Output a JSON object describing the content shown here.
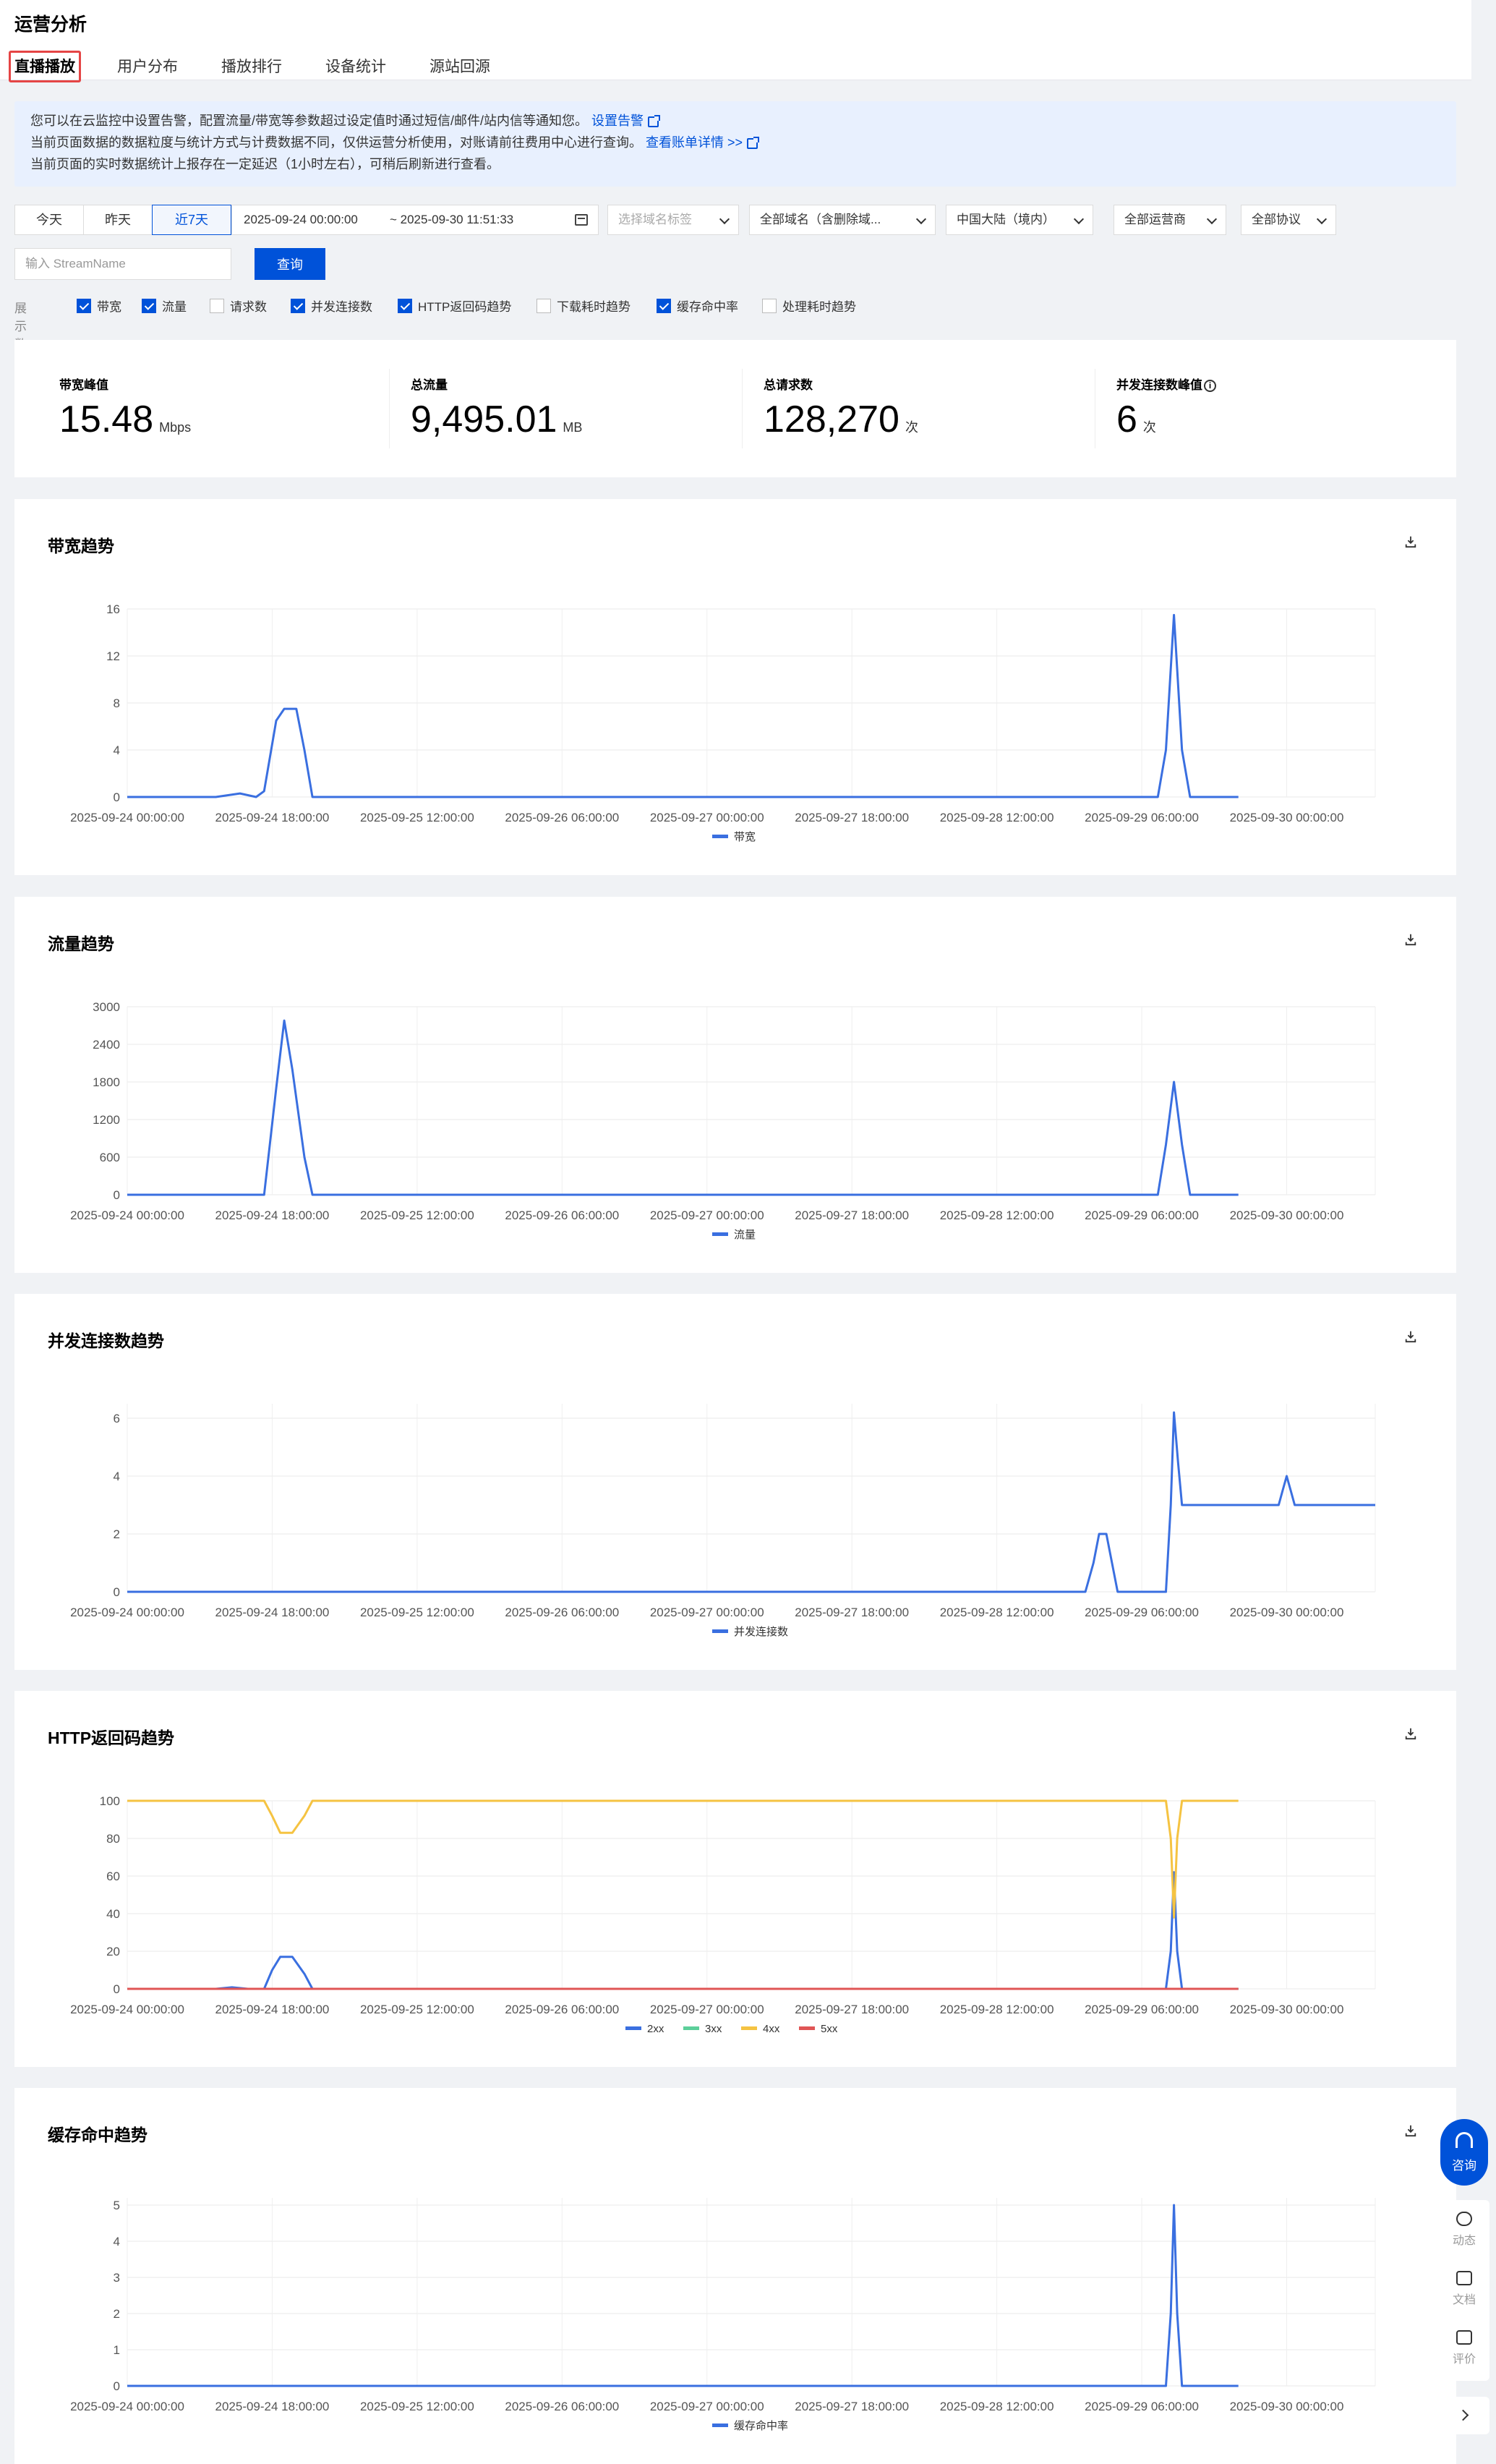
{
  "page": {
    "title": "运营分析",
    "tabs": [
      "直播播放",
      "用户分布",
      "播放排行",
      "设备统计",
      "源站回源"
    ],
    "active_tab": 0
  },
  "notice": {
    "line1": "您可以在云监控中设置告警，配置流量/带宽等参数超过设定值时通过短信/邮件/站内信等通知您。",
    "link1": "设置告警",
    "line2": "当前页面数据的数据粒度与统计方式与计费数据不同，仅供运营分析使用，对账请前往费用中心进行查询。",
    "link2": "查看账单详情 >>",
    "line3": "当前页面的实时数据统计上报存在一定延迟（1小时左右），可稍后刷新进行查看。"
  },
  "filters": {
    "ranges": [
      "今天",
      "昨天",
      "近7天"
    ],
    "active_range": 2,
    "date_start": "2025-09-24 00:00:00",
    "date_end": "~ 2025-09-30 11:51:33",
    "domain_tag_placeholder": "选择域名标签",
    "domain": "全部域名（含删除域...",
    "region": "中国大陆（境内）",
    "isp": "全部运营商",
    "protocol": "全部协议",
    "stream_placeholder": "输入 StreamName",
    "query_button": "查询"
  },
  "display_options": {
    "label": "展示数据",
    "items": [
      {
        "label": "带宽",
        "checked": true
      },
      {
        "label": "流量",
        "checked": true
      },
      {
        "label": "请求数",
        "checked": false
      },
      {
        "label": "并发连接数",
        "checked": true
      },
      {
        "label": "HTTP返回码趋势",
        "checked": true
      },
      {
        "label": "下载耗时趋势",
        "checked": false
      },
      {
        "label": "缓存命中率",
        "checked": true
      },
      {
        "label": "处理耗时趋势",
        "checked": false
      }
    ]
  },
  "summary": [
    {
      "label": "带宽峰值",
      "value": "15.48",
      "unit": "Mbps"
    },
    {
      "label": "总流量",
      "value": "9,495.01",
      "unit": "MB"
    },
    {
      "label": "总请求数",
      "value": "128,270",
      "unit": "次"
    },
    {
      "label": "并发连接数峰值",
      "value": "6",
      "unit": "次",
      "info_icon": "info-icon"
    }
  ],
  "icons": {
    "download": "download-icon",
    "consult": "headset-icon",
    "news": "cloud-icon",
    "docs": "book-icon",
    "review": "comment-icon",
    "expand": "chevron-right-icon"
  },
  "floating": {
    "consult": "咨询",
    "tools": [
      "动态",
      "文档",
      "评价"
    ]
  },
  "colors": {
    "primary": "#0052d9",
    "series_blue": "#3a6fe0",
    "series_green": "#5ccf9a",
    "series_yellow": "#f5c342",
    "series_red": "#e05555"
  },
  "chart_data": [
    {
      "type": "line",
      "title": "带宽趋势",
      "x": [
        "2025-09-24 00:00:00",
        "2025-09-24 18:00:00",
        "2025-09-25 12:00:00",
        "2025-09-26 06:00:00",
        "2025-09-27 00:00:00",
        "2025-09-27 18:00:00",
        "2025-09-28 12:00:00",
        "2025-09-29 06:00:00",
        "2025-09-30 00:00:00"
      ],
      "yticks": [
        0,
        4,
        8,
        12,
        16
      ],
      "ylim": [
        0,
        16
      ],
      "grid": true,
      "legend_position": "bottom",
      "series": [
        {
          "name": "带宽",
          "color": "#3a6fe0",
          "points": [
            [
              0,
              0
            ],
            [
              11,
              0
            ],
            [
              14,
              0.3
            ],
            [
              16,
              0
            ],
            [
              17,
              0.5
            ],
            [
              18.5,
              6.5
            ],
            [
              19.5,
              7.5
            ],
            [
              21,
              7.5
            ],
            [
              22,
              4
            ],
            [
              23,
              0
            ],
            [
              128,
              0
            ],
            [
              129,
              4
            ],
            [
              130,
              15.48
            ],
            [
              131,
              4
            ],
            [
              132,
              0
            ],
            [
              138,
              0
            ]
          ]
        }
      ]
    },
    {
      "type": "line",
      "title": "流量趋势",
      "x": [
        "2025-09-24 00:00:00",
        "2025-09-24 18:00:00",
        "2025-09-25 12:00:00",
        "2025-09-26 06:00:00",
        "2025-09-27 00:00:00",
        "2025-09-27 18:00:00",
        "2025-09-28 12:00:00",
        "2025-09-29 06:00:00",
        "2025-09-30 00:00:00"
      ],
      "yticks": [
        0,
        600,
        1200,
        1800,
        2400,
        3000
      ],
      "ylim": [
        0,
        3000
      ],
      "grid": true,
      "legend_position": "bottom",
      "series": [
        {
          "name": "流量",
          "color": "#3a6fe0",
          "points": [
            [
              0,
              0
            ],
            [
              17,
              0
            ],
            [
              18.5,
              1700
            ],
            [
              19.5,
              2780
            ],
            [
              20.5,
              2000
            ],
            [
              22,
              600
            ],
            [
              23,
              0
            ],
            [
              128,
              0
            ],
            [
              129,
              800
            ],
            [
              130,
              1800
            ],
            [
              131,
              800
            ],
            [
              132,
              0
            ],
            [
              138,
              0
            ]
          ]
        }
      ]
    },
    {
      "type": "line",
      "title": "并发连接数趋势",
      "x": [
        "2025-09-24 00:00:00",
        "2025-09-24 18:00:00",
        "2025-09-25 12:00:00",
        "2025-09-26 06:00:00",
        "2025-09-27 00:00:00",
        "2025-09-27 18:00:00",
        "2025-09-28 12:00:00",
        "2025-09-29 06:00:00",
        "2025-09-30 00:00:00"
      ],
      "yticks": [
        0,
        2,
        4,
        6
      ],
      "ylim": [
        0,
        6.5
      ],
      "grid": true,
      "legend_position": "bottom",
      "series": [
        {
          "name": "并发连接数",
          "color": "#3a6fe0",
          "points": [
            [
              0,
              0
            ],
            [
              119,
              0
            ],
            [
              120,
              1
            ],
            [
              120.7,
              2
            ],
            [
              121.6,
              2
            ],
            [
              122.3,
              1
            ],
            [
              123,
              0
            ],
            [
              129,
              0
            ],
            [
              129.6,
              3
            ],
            [
              130,
              6.2
            ],
            [
              130.5,
              4.5
            ],
            [
              131,
              3
            ],
            [
              143,
              3
            ],
            [
              143.5,
              3.5
            ],
            [
              144,
              4
            ],
            [
              144.5,
              3.5
            ],
            [
              145,
              3
            ],
            [
              155,
              3
            ]
          ]
        }
      ]
    },
    {
      "type": "line",
      "title": "HTTP返回码趋势",
      "x": [
        "2025-09-24 00:00:00",
        "2025-09-24 18:00:00",
        "2025-09-25 12:00:00",
        "2025-09-26 06:00:00",
        "2025-09-27 00:00:00",
        "2025-09-27 18:00:00",
        "2025-09-28 12:00:00",
        "2025-09-29 06:00:00",
        "2025-09-30 00:00:00"
      ],
      "yticks": [
        0,
        20,
        40,
        60,
        80,
        100
      ],
      "ylim": [
        0,
        100
      ],
      "grid": true,
      "legend_position": "bottom",
      "series": [
        {
          "name": "2xx",
          "color": "#3a6fe0",
          "points": [
            [
              0,
              0
            ],
            [
              11,
              0
            ],
            [
              13,
              0.8
            ],
            [
              15,
              0
            ],
            [
              17,
              0
            ],
            [
              18,
              10
            ],
            [
              19,
              17
            ],
            [
              20.5,
              17
            ],
            [
              22,
              8
            ],
            [
              23,
              0
            ],
            [
              129,
              0
            ],
            [
              129.6,
              20
            ],
            [
              130,
              62
            ],
            [
              130.4,
              20
            ],
            [
              131,
              0
            ],
            [
              138,
              0
            ]
          ]
        },
        {
          "name": "3xx",
          "color": "#5ccf9a",
          "points": [
            [
              0,
              0
            ],
            [
              138,
              0
            ]
          ]
        },
        {
          "name": "4xx",
          "color": "#f5c342",
          "points": [
            [
              0,
              100
            ],
            [
              17,
              100
            ],
            [
              18,
              92
            ],
            [
              19,
              83
            ],
            [
              20.5,
              83
            ],
            [
              22,
              92
            ],
            [
              23,
              100
            ],
            [
              129,
              100
            ],
            [
              129.6,
              80
            ],
            [
              130,
              38
            ],
            [
              130.4,
              80
            ],
            [
              131,
              100
            ],
            [
              138,
              100
            ]
          ]
        },
        {
          "name": "5xx",
          "color": "#e05555",
          "points": [
            [
              0,
              0
            ],
            [
              138,
              0
            ]
          ]
        }
      ]
    },
    {
      "type": "line",
      "title": "缓存命中趋势",
      "x": [
        "2025-09-24 00:00:00",
        "2025-09-24 18:00:00",
        "2025-09-25 12:00:00",
        "2025-09-26 06:00:00",
        "2025-09-27 00:00:00",
        "2025-09-27 18:00:00",
        "2025-09-28 12:00:00",
        "2025-09-29 06:00:00",
        "2025-09-30 00:00:00"
      ],
      "yticks": [
        0,
        1,
        2,
        3,
        4,
        5
      ],
      "ylim": [
        0,
        5.2
      ],
      "grid": true,
      "legend_position": "bottom",
      "series": [
        {
          "name": "缓存命中率",
          "color": "#3a6fe0",
          "points": [
            [
              0,
              0
            ],
            [
              129,
              0
            ],
            [
              129.6,
              2
            ],
            [
              130,
              5
            ],
            [
              130.4,
              2
            ],
            [
              131,
              0
            ],
            [
              138,
              0
            ]
          ]
        }
      ]
    }
  ]
}
